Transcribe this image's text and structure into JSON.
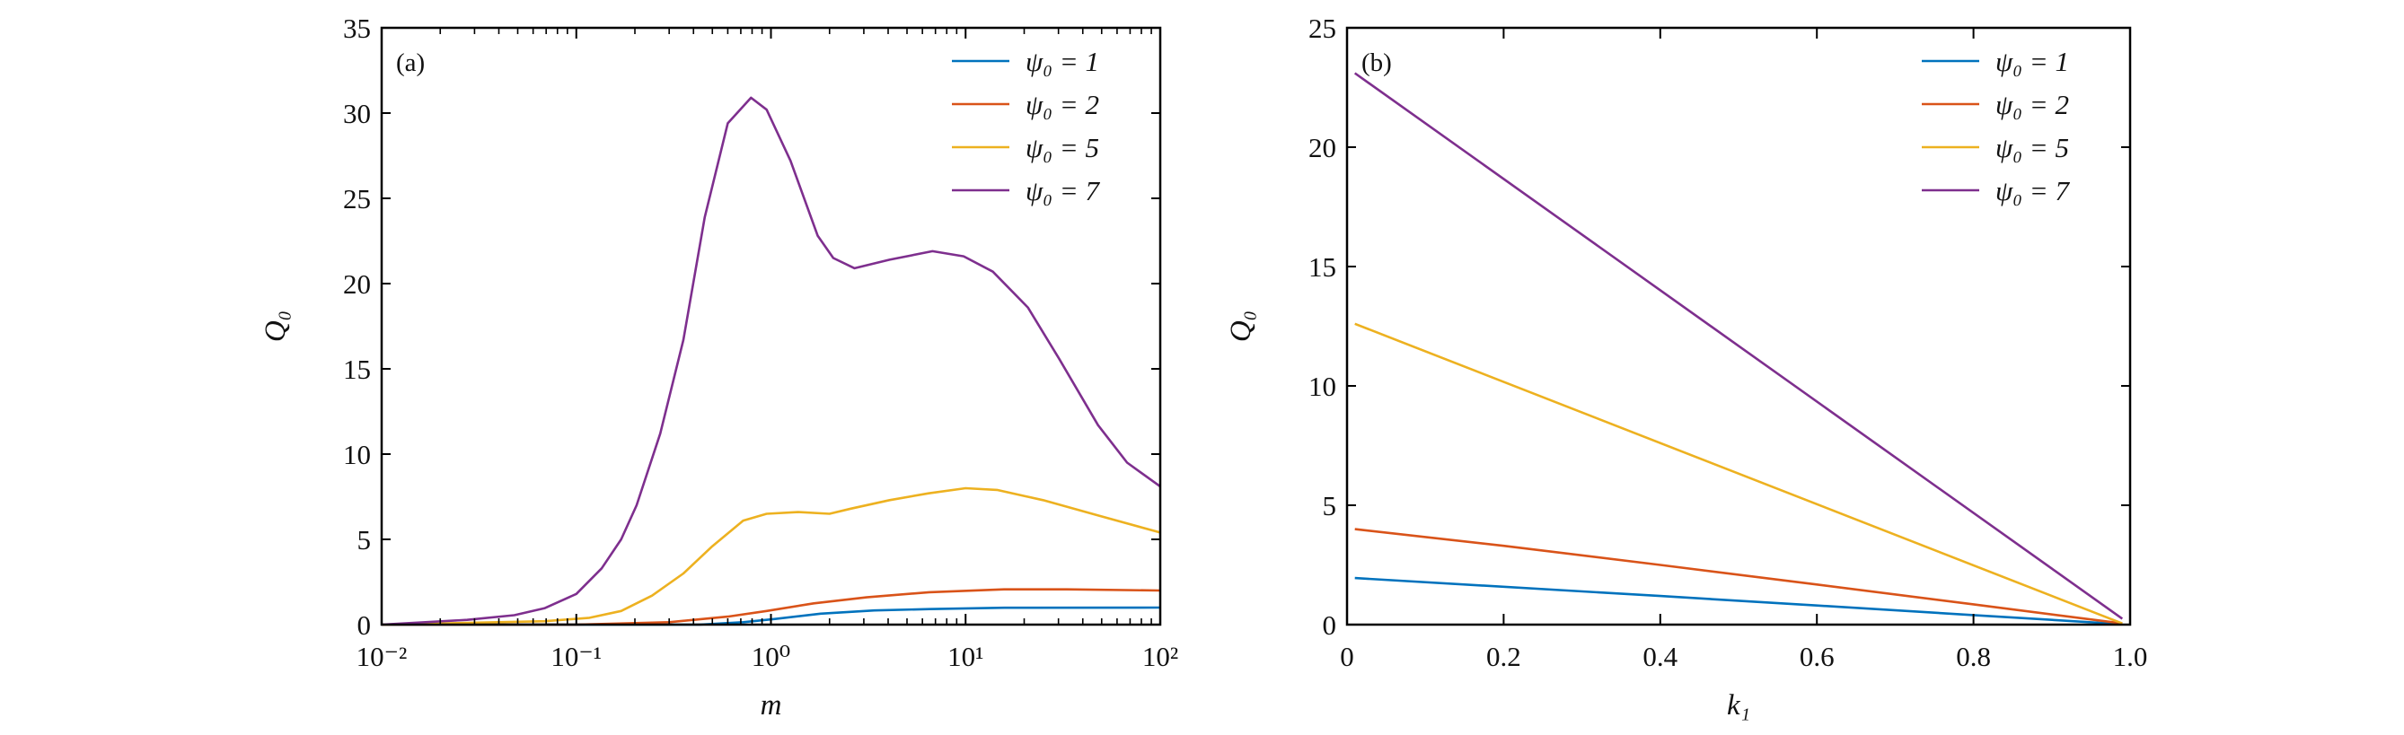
{
  "colors": {
    "psi1": "#0072BD",
    "psi2": "#D95319",
    "psi5": "#EDB120",
    "psi7": "#7E2F8E"
  },
  "chart_data": [
    {
      "type": "line",
      "panel_label": "(a)",
      "xlabel": "m",
      "ylabel": "Q₀",
      "xscale": "log",
      "xlim": [
        0.01,
        100
      ],
      "ylim": [
        0,
        35
      ],
      "xticks": [
        0.01,
        0.1,
        1,
        10,
        100
      ],
      "xtick_labels": [
        "10⁻²",
        "10⁻¹",
        "10⁰",
        "10¹",
        "10²"
      ],
      "yticks": [
        0,
        5,
        10,
        15,
        20,
        25,
        30,
        35
      ],
      "ytick_labels": [
        "0",
        "5",
        "10",
        "15",
        "20",
        "25",
        "30",
        "35"
      ],
      "grid": false,
      "legend_placement": "top-right",
      "series": [
        {
          "name": "ψ₀ = 1",
          "color": "#0072BD",
          "x": [
            0.01,
            0.1,
            0.43,
            0.72,
            1.05,
            1.8,
            3.4,
            6.5,
            15.8,
            100
          ],
          "y": [
            0,
            0,
            0,
            0.14,
            0.33,
            0.64,
            0.83,
            0.91,
            0.99,
            1.0
          ]
        },
        {
          "name": "ψ₀ = 2",
          "color": "#D95319",
          "x": [
            0.01,
            0.1,
            0.3,
            0.6,
            0.95,
            1.66,
            3.1,
            6.5,
            15.8,
            33,
            100
          ],
          "y": [
            0,
            0,
            0.14,
            0.47,
            0.8,
            1.25,
            1.6,
            1.9,
            2.07,
            2.07,
            2.0
          ]
        },
        {
          "name": "ψ₀ = 5",
          "color": "#EDB120",
          "x": [
            0.01,
            0.069,
            0.117,
            0.17,
            0.245,
            0.355,
            0.5,
            0.72,
            0.95,
            1.38,
            2.0,
            2.57,
            4.07,
            6.46,
            10,
            14.5,
            25,
            48,
            100
          ],
          "y": [
            0,
            0.2,
            0.4,
            0.8,
            1.7,
            3.0,
            4.6,
            6.1,
            6.5,
            6.6,
            6.5,
            6.8,
            7.3,
            7.7,
            8.0,
            7.9,
            7.3,
            6.4,
            5.4
          ]
        },
        {
          "name": "ψ₀ = 7",
          "color": "#7E2F8E",
          "x": [
            0.01,
            0.0275,
            0.048,
            0.069,
            0.1,
            0.135,
            0.17,
            0.204,
            0.27,
            0.355,
            0.457,
            0.6,
            0.79,
            0.95,
            1.26,
            1.74,
            2.09,
            2.69,
            4.07,
            6.76,
            9.77,
            13.8,
            20.9,
            30.2,
            47.9,
            67.6,
            100
          ],
          "y": [
            0,
            0.28,
            0.55,
            0.97,
            1.8,
            3.3,
            5.0,
            7.0,
            11.2,
            16.7,
            23.9,
            29.4,
            30.9,
            30.2,
            27.2,
            22.8,
            21.5,
            20.9,
            21.4,
            21.9,
            21.6,
            20.7,
            18.6,
            15.6,
            11.7,
            9.5,
            8.1
          ]
        }
      ]
    },
    {
      "type": "line",
      "panel_label": "(b)",
      "xlabel": "k₁",
      "ylabel": "Q₀",
      "xscale": "linear",
      "xlim": [
        0,
        1
      ],
      "ylim": [
        0,
        25
      ],
      "xticks": [
        0,
        0.2,
        0.4,
        0.6,
        0.8,
        1.0
      ],
      "xtick_labels": [
        "0",
        "0.2",
        "0.4",
        "0.6",
        "0.8",
        "1.0"
      ],
      "yticks": [
        0,
        5,
        10,
        15,
        20,
        25
      ],
      "ytick_labels": [
        "0",
        "5",
        "10",
        "15",
        "20",
        "25"
      ],
      "grid": false,
      "legend_placement": "top-right",
      "series": [
        {
          "name": "ψ₀ = 1",
          "color": "#0072BD",
          "x": [
            0.01,
            0.4,
            0.6,
            0.8,
            0.99
          ],
          "y": [
            1.95,
            1.2,
            0.8,
            0.4,
            0.02
          ]
        },
        {
          "name": "ψ₀ = 2",
          "color": "#D95319",
          "x": [
            0.01,
            0.2,
            0.4,
            0.6,
            0.8,
            0.99
          ],
          "y": [
            4.0,
            3.3,
            2.5,
            1.68,
            0.85,
            0.05
          ]
        },
        {
          "name": "ψ₀ = 5",
          "color": "#EDB120",
          "x": [
            0.01,
            0.99
          ],
          "y": [
            12.6,
            0.05
          ]
        },
        {
          "name": "ψ₀ = 7",
          "color": "#7E2F8E",
          "x": [
            0.01,
            0.99
          ],
          "y": [
            23.1,
            0.25
          ]
        }
      ]
    }
  ]
}
